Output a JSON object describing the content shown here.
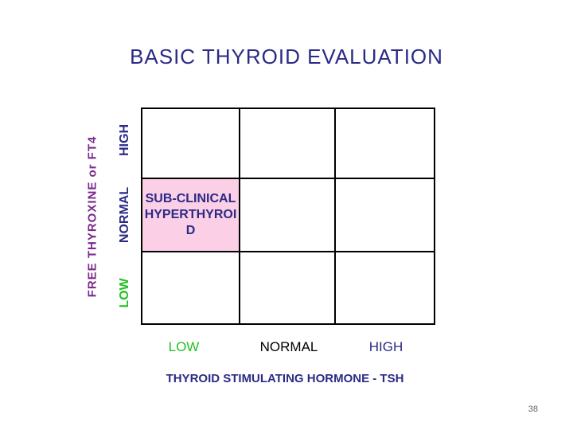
{
  "title": "BASIC  THYROID  EVALUATION",
  "y_axis": {
    "label": "FREE THYROXINE or FT4",
    "levels": [
      {
        "text": "HIGH",
        "color": "#2b2a86"
      },
      {
        "text": "NORMAL",
        "color": "#2b2a86"
      },
      {
        "text": "LOW",
        "color": "#22c022"
      }
    ]
  },
  "x_axis": {
    "label": "THYROID STIMULATING HORMONE - TSH",
    "levels": [
      {
        "text": "LOW",
        "color": "#22c022"
      },
      {
        "text": "NORMAL",
        "color": "#000000"
      },
      {
        "text": "HIGH",
        "color": "#2b2a86"
      }
    ]
  },
  "grid": {
    "highlight_cell": {
      "row": "NORMAL",
      "column": "LOW",
      "fill": "#fbcfe6"
    },
    "cell_text": "SUB-CLINICAL HYPERTHYROID"
  },
  "page_number": "38"
}
